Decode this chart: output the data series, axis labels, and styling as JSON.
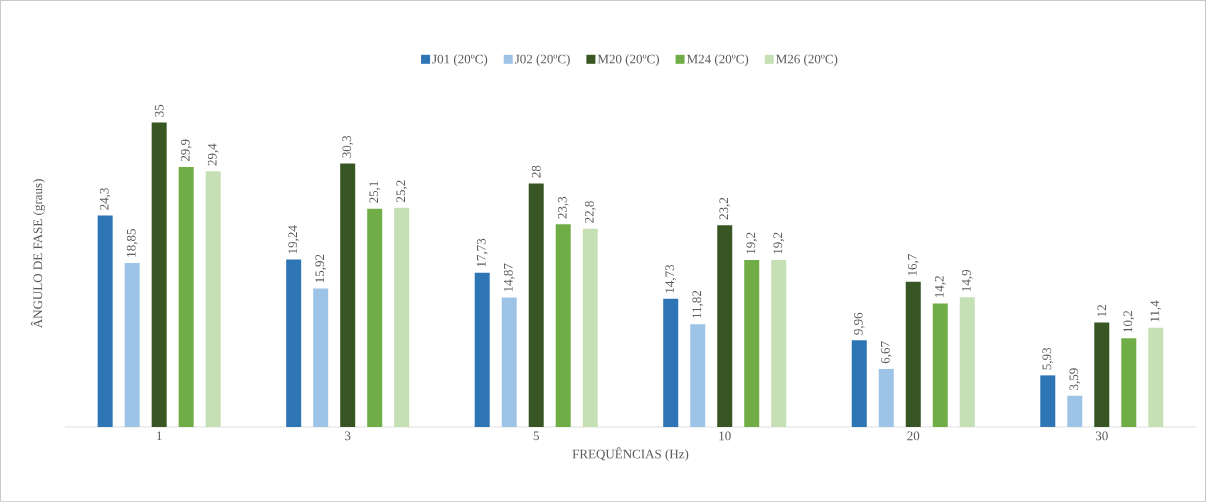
{
  "chart_data": {
    "type": "bar",
    "xlabel": "FREQUÊNCIAS (Hz)",
    "ylabel": "ÂNGULO DE FASE (graus)",
    "categories": [
      "1",
      "3",
      "5",
      "10",
      "20",
      "30"
    ],
    "tick_labels": "x",
    "legend": "top",
    "series": [
      {
        "name": "J01 (20ºC)",
        "color": "#2e75b6",
        "values": [
          24.3,
          19.24,
          17.73,
          14.73,
          9.96,
          5.93
        ],
        "value_labels": [
          "24,3",
          "19,24",
          "17,73",
          "14,73",
          "9,96",
          "5,93"
        ]
      },
      {
        "name": "J02 (20ºC)",
        "color": "#9dc3e6",
        "values": [
          18.85,
          15.92,
          14.87,
          11.82,
          6.67,
          3.59
        ],
        "value_labels": [
          "18,85",
          "15,92",
          "14,87",
          "11,82",
          "6,67",
          "3,59"
        ]
      },
      {
        "name": "M20 (20ºC)",
        "color": "#375623",
        "values": [
          35,
          30.3,
          28,
          23.2,
          16.7,
          12
        ],
        "value_labels": [
          "35",
          "30,3",
          "28",
          "23,2",
          "16,7",
          "12"
        ]
      },
      {
        "name": "M24 (20ºC)",
        "color": "#70ad47",
        "values": [
          29.9,
          25.1,
          23.3,
          19.2,
          14.2,
          10.2
        ],
        "value_labels": [
          "29,9",
          "25,1",
          "23,3",
          "19,2",
          "14,2",
          "10,2"
        ]
      },
      {
        "name": "M26 (20ºC)",
        "color": "#c5e0b4",
        "values": [
          29.4,
          25.2,
          22.8,
          19.2,
          14.9,
          11.4
        ],
        "value_labels": [
          "29,4",
          "25,2",
          "22,8",
          "19,2",
          "14,9",
          "11,4"
        ]
      }
    ]
  }
}
